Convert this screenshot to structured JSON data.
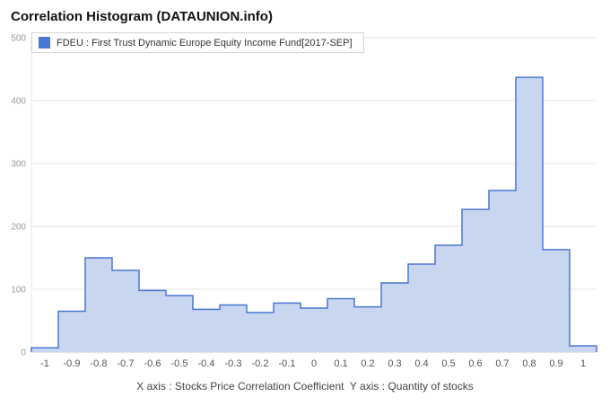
{
  "title": "Correlation Histogram (DATAUNION.info)",
  "legend": {
    "label": "FDEU : First Trust Dynamic Europe Equity Income Fund[2017-SEP]",
    "swatch_color": "#4a77d4"
  },
  "caption": "X axis : Stocks Price Correlation Coefficient  Y axis : Quantity of stocks",
  "chart_data": {
    "type": "bar",
    "subtype": "step-area-histogram",
    "title": "Correlation Histogram (DATAUNION.info)",
    "series_name": "FDEU : First Trust Dynamic Europe Equity Income Fund[2017-SEP]",
    "categories": [
      "-1",
      "-0.9",
      "-0.8",
      "-0.7",
      "-0.6",
      "-0.5",
      "-0.4",
      "-0.3",
      "-0.2",
      "-0.1",
      "0",
      "0.1",
      "0.2",
      "0.3",
      "0.4",
      "0.5",
      "0.6",
      "0.7",
      "0.8",
      "0.9",
      "1"
    ],
    "values": [
      7,
      65,
      150,
      130,
      98,
      90,
      68,
      75,
      63,
      78,
      70,
      85,
      72,
      110,
      140,
      170,
      227,
      257,
      437,
      163,
      10
    ],
    "xlabel": "Stocks Price Correlation Coefficient",
    "ylabel": "Quantity of stocks",
    "ylim": [
      0,
      500
    ],
    "yticks": [
      0,
      100,
      200,
      300,
      400,
      500
    ],
    "grid": true,
    "legend_position": "top-left",
    "colors": {
      "fill": "#c9d6f0",
      "stroke": "#4a77d4",
      "grid": "#e6e6e6",
      "axis": "#c9c9c9",
      "ytick_label": "#999999",
      "xtick_label": "#555555"
    }
  }
}
